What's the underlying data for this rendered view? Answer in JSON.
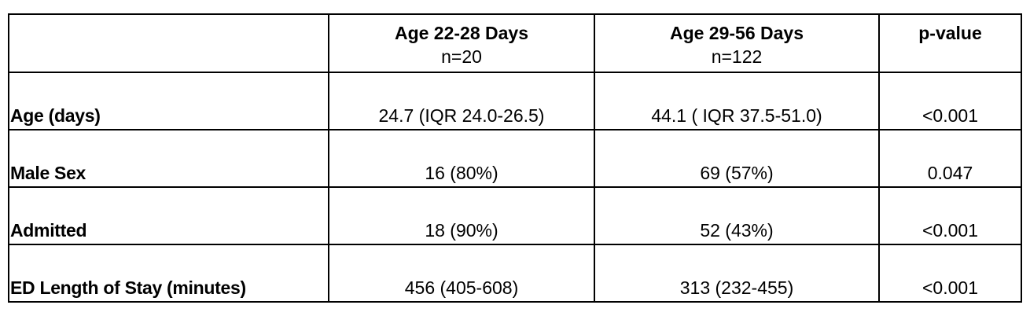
{
  "table": {
    "header": [
      {
        "title": "Age 22-28 Days",
        "subtitle": "n=20"
      },
      {
        "title": "Age 29-56 Days",
        "subtitle": "n=122"
      },
      {
        "title": "p-value"
      }
    ],
    "rows": [
      [
        "Age (days)",
        "24.7 (IQR 24.0-26.5)",
        "44.1 ( IQR 37.5-51.0)",
        "<0.001"
      ],
      [
        "Male Sex",
        "16 (80%)",
        "69 (57%)",
        "0.047"
      ],
      [
        "Admitted",
        "18 (90%)",
        "52 (43%)",
        "<0.001"
      ],
      [
        "ED Length of Stay (minutes)",
        "456 (405-608)",
        "313 (232-455)",
        "<0.001"
      ]
    ]
  }
}
